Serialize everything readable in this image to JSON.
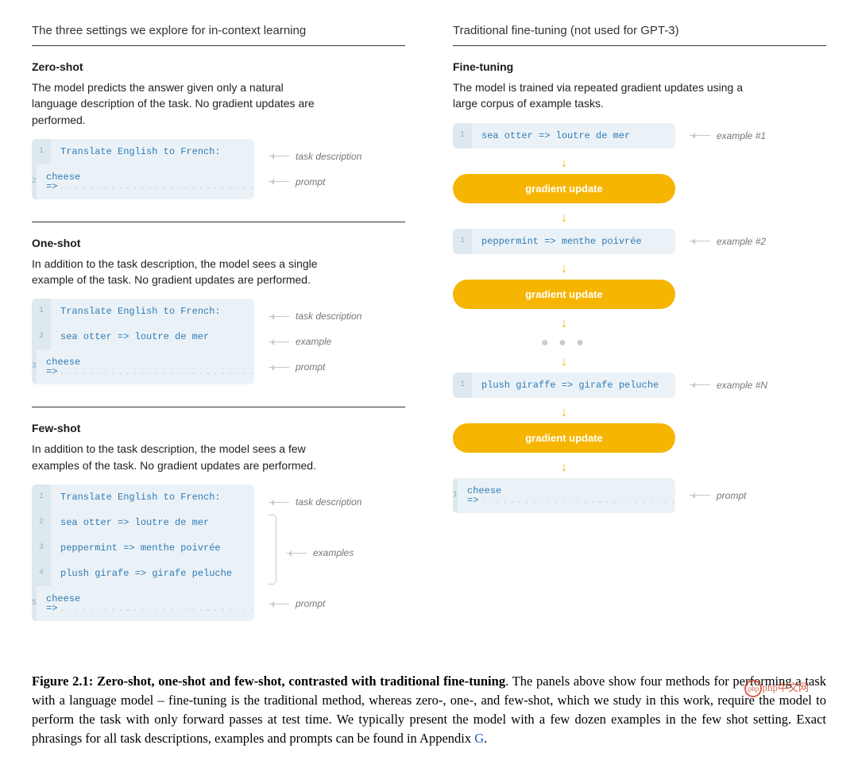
{
  "colors": {
    "code_bg": "#ebf2f7",
    "code_gutter_bg": "#dde8ef",
    "code_text": "#2f7bb5",
    "pill_bg": "#f6b500",
    "pill_text": "#ffffff",
    "annot_text": "#777777",
    "arrow_gray": "#c8c8c8",
    "flow_arrow": "#f6b500",
    "rule": "#333333"
  },
  "left": {
    "heading": "The three settings we explore for in-context learning",
    "sections": [
      {
        "title": "Zero-shot",
        "desc": "The model predicts the answer given only a natural language description of the task. No gradient updates are performed.",
        "lines": [
          {
            "n": "1",
            "text": "Translate English to French:",
            "annot": "task description"
          },
          {
            "n": "2",
            "text": "cheese =>",
            "annot": "prompt",
            "dotted": true
          }
        ]
      },
      {
        "title": "One-shot",
        "desc": "In addition to the task description, the model sees a single example of the task. No gradient updates are performed.",
        "lines": [
          {
            "n": "1",
            "text": "Translate English to French:",
            "annot": "task description"
          },
          {
            "n": "2",
            "text": "sea otter => loutre de mer",
            "annot": "example"
          },
          {
            "n": "3",
            "text": "cheese =>",
            "annot": "prompt",
            "dotted": true
          }
        ]
      },
      {
        "title": "Few-shot",
        "desc": "In addition to the task description, the model sees a few examples of the task. No gradient updates are performed.",
        "lines": [
          {
            "n": "1",
            "text": "Translate English to French:",
            "annot": "task description"
          },
          {
            "n": "2",
            "text": "sea otter => loutre de mer",
            "group": "examples"
          },
          {
            "n": "3",
            "text": "peppermint => menthe poivrée",
            "group": "examples"
          },
          {
            "n": "4",
            "text": "plush girafe => girafe peluche",
            "group": "examples"
          },
          {
            "n": "5",
            "text": "cheese =>",
            "annot": "prompt",
            "dotted": true
          }
        ],
        "group_label": "examples"
      }
    ]
  },
  "right": {
    "heading": "Traditional fine-tuning (not used for GPT-3)",
    "title": "Fine-tuning",
    "desc": "The model is trained via repeated gradient updates using a large corpus of example tasks.",
    "pill_label": "gradient update",
    "flow": [
      {
        "type": "code",
        "n": "1",
        "text": "sea otter => loutre de mer",
        "annot": "example #1"
      },
      {
        "type": "arrow"
      },
      {
        "type": "pill"
      },
      {
        "type": "arrow"
      },
      {
        "type": "code",
        "n": "1",
        "text": "peppermint => menthe poivrée",
        "annot": "example #2"
      },
      {
        "type": "arrow"
      },
      {
        "type": "pill"
      },
      {
        "type": "arrow"
      },
      {
        "type": "dots"
      },
      {
        "type": "arrow"
      },
      {
        "type": "code",
        "n": "1",
        "text": "plush giraffe => girafe peluche",
        "annot": "example #N"
      },
      {
        "type": "arrow"
      },
      {
        "type": "pill"
      },
      {
        "type": "arrow"
      },
      {
        "type": "code",
        "n": "1",
        "text": "cheese =>",
        "annot": "prompt",
        "dotted": true
      }
    ]
  },
  "caption": {
    "lead": "Figure 2.1:  Zero-shot, one-shot and few-shot, contrasted with traditional fine-tuning",
    "body1": ".  The panels above show four methods for performing a task with a language model – fine-tuning is the traditional method, whereas zero-, one-, and few-shot, which we study in this work, require the model to perform the task with only forward passes at test time. We typically present the model with a few dozen examples in the few shot setting. Exact phrasings for all task descriptions, examples and prompts can be found in Appendix ",
    "appendix": "G",
    "body2": "."
  },
  "watermark": "php中文网"
}
